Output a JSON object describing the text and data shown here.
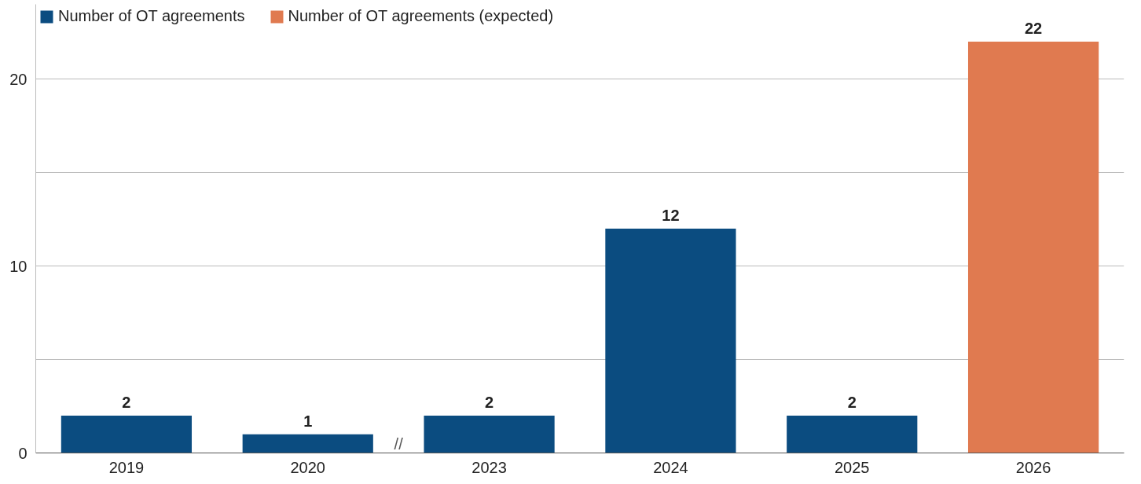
{
  "chart_data": {
    "type": "bar",
    "stacked": true,
    "categories": [
      "2019",
      "2020",
      "2023",
      "2024",
      "2025",
      "2026"
    ],
    "series": [
      {
        "name": "Number of OT agreements",
        "color": "#0b4c80",
        "values": [
          2,
          1,
          2,
          12,
          2,
          null
        ]
      },
      {
        "name": "Number of OT agreements (expected)",
        "color": "#e07a50",
        "values": [
          null,
          null,
          null,
          null,
          null,
          22
        ]
      }
    ],
    "ylim": [
      0,
      24
    ],
    "yticks": [
      0,
      {
        "value": 5,
        "label": null
      },
      10,
      {
        "value": 15,
        "label": null
      },
      20
    ],
    "grid": "y",
    "legend": "top left",
    "data_labels": true,
    "annotations": [
      "//"
    ]
  }
}
